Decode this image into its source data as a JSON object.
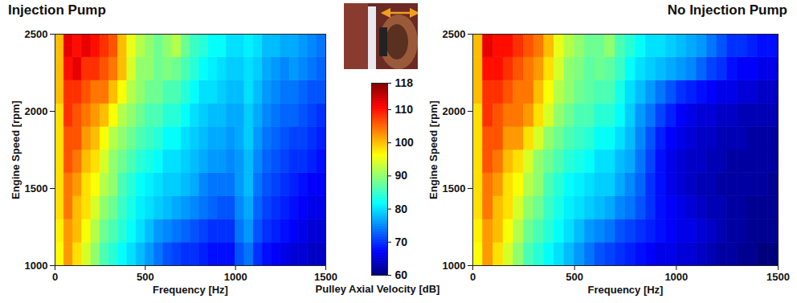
{
  "chart_data": [
    {
      "type": "heatmap",
      "title": "Injection Pump",
      "x_label": "Frequency [Hz]",
      "y_label": "Engine Speed [rpm]",
      "xlim": [
        0,
        1500
      ],
      "xticks": [
        0,
        500,
        1000,
        1500
      ],
      "ylim": [
        1000,
        2500
      ],
      "yticks": [
        1000,
        1500,
        2000,
        2500
      ],
      "x_bins": [
        0,
        50,
        100,
        150,
        200,
        250,
        300,
        350,
        400,
        450,
        500,
        550,
        600,
        650,
        700,
        750,
        800,
        850,
        900,
        950,
        1000,
        1050,
        1100,
        1150,
        1200,
        1250,
        1300,
        1350,
        1400,
        1450,
        1500
      ],
      "y_bins": [
        1000,
        1150,
        1300,
        1450,
        1600,
        1750,
        1900,
        2050,
        2200,
        2350,
        2500
      ],
      "cells": [
        [
          96,
          102,
          98,
          94,
          90,
          86,
          84,
          82,
          80,
          78,
          76,
          74,
          72,
          71,
          70,
          70,
          69,
          68,
          68,
          68,
          72,
          74,
          70,
          68,
          67,
          66,
          65,
          65,
          64,
          64
        ],
        [
          97,
          102,
          100,
          96,
          92,
          88,
          86,
          84,
          82,
          80,
          78,
          76,
          75,
          74,
          73,
          72,
          71,
          70,
          70,
          70,
          74,
          76,
          72,
          70,
          69,
          68,
          67,
          66,
          65,
          65
        ],
        [
          98,
          104,
          100,
          98,
          94,
          90,
          88,
          85,
          83,
          81,
          80,
          79,
          78,
          77,
          76,
          75,
          74,
          73,
          72,
          72,
          75,
          77,
          73,
          71,
          70,
          69,
          68,
          67,
          66,
          66
        ],
        [
          98,
          104,
          102,
          98,
          96,
          92,
          90,
          86,
          84,
          82,
          81,
          80,
          79,
          79,
          78,
          77,
          75,
          74,
          74,
          74,
          76,
          78,
          74,
          72,
          71,
          70,
          69,
          68,
          67,
          67
        ],
        [
          98,
          106,
          104,
          100,
          98,
          94,
          90,
          88,
          86,
          84,
          83,
          82,
          80,
          80,
          79,
          78,
          77,
          76,
          76,
          75,
          76,
          78,
          75,
          73,
          72,
          71,
          70,
          70,
          69,
          68
        ],
        [
          98,
          106,
          106,
          102,
          100,
          96,
          92,
          90,
          88,
          86,
          85,
          84,
          82,
          82,
          80,
          79,
          78,
          77,
          77,
          76,
          77,
          79,
          76,
          74,
          73,
          72,
          71,
          71,
          70,
          69
        ],
        [
          98,
          108,
          106,
          104,
          102,
          100,
          96,
          92,
          90,
          88,
          86,
          86,
          84,
          84,
          82,
          80,
          79,
          78,
          78,
          77,
          77,
          79,
          77,
          75,
          74,
          73,
          73,
          72,
          71,
          70
        ],
        [
          100,
          108,
          108,
          106,
          104,
          104,
          100,
          96,
          92,
          90,
          88,
          88,
          86,
          86,
          84,
          82,
          80,
          80,
          79,
          78,
          78,
          80,
          78,
          76,
          75,
          74,
          74,
          73,
          72,
          72
        ],
        [
          100,
          110,
          112,
          108,
          108,
          106,
          104,
          100,
          94,
          90,
          90,
          88,
          89,
          88,
          86,
          84,
          82,
          81,
          80,
          79,
          79,
          80,
          79,
          77,
          76,
          75,
          76,
          75,
          74,
          73
        ],
        [
          100,
          112,
          110,
          112,
          110,
          108,
          106,
          100,
          95,
          92,
          90,
          88,
          90,
          92,
          88,
          85,
          84,
          82,
          82,
          80,
          80,
          81,
          80,
          78,
          78,
          77,
          77,
          76,
          75,
          74
        ]
      ]
    },
    {
      "type": "heatmap",
      "title": "No Injection Pump",
      "x_label": "Frequency [Hz]",
      "y_label": "Engine Speed [rpm]",
      "xlim": [
        0,
        1500
      ],
      "xticks": [
        0,
        500,
        1000,
        1500
      ],
      "ylim": [
        1000,
        2500
      ],
      "yticks": [
        1000,
        1500,
        2000,
        2500
      ],
      "x_bins": [
        0,
        50,
        100,
        150,
        200,
        250,
        300,
        350,
        400,
        450,
        500,
        550,
        600,
        650,
        700,
        750,
        800,
        850,
        900,
        950,
        1000,
        1050,
        1100,
        1150,
        1200,
        1250,
        1300,
        1350,
        1400,
        1450,
        1500
      ],
      "y_bins": [
        1000,
        1150,
        1300,
        1450,
        1600,
        1750,
        1900,
        2050,
        2200,
        2350,
        2500
      ],
      "cells": [
        [
          96,
          102,
          98,
          94,
          90,
          86,
          84,
          82,
          80,
          78,
          76,
          74,
          72,
          71,
          70,
          69,
          68,
          67,
          66,
          66,
          65,
          65,
          64,
          63,
          62,
          62,
          61,
          61,
          60,
          60
        ],
        [
          97,
          102,
          100,
          96,
          92,
          88,
          86,
          84,
          82,
          80,
          78,
          76,
          75,
          74,
          72,
          71,
          70,
          69,
          68,
          67,
          66,
          66,
          65,
          64,
          63,
          62,
          62,
          61,
          61,
          61
        ],
        [
          98,
          104,
          100,
          98,
          94,
          90,
          88,
          85,
          83,
          81,
          80,
          79,
          78,
          77,
          75,
          74,
          72,
          70,
          68,
          67,
          66,
          65,
          64,
          63,
          63,
          62,
          62,
          61,
          61,
          61
        ],
        [
          98,
          104,
          102,
          98,
          96,
          92,
          90,
          86,
          84,
          82,
          81,
          80,
          79,
          79,
          77,
          75,
          73,
          70,
          68,
          66,
          65,
          64,
          63,
          63,
          62,
          62,
          62,
          62,
          62,
          61
        ],
        [
          98,
          106,
          104,
          100,
          98,
          94,
          90,
          88,
          86,
          84,
          83,
          82,
          80,
          80,
          78,
          77,
          74,
          71,
          68,
          66,
          65,
          64,
          64,
          63,
          63,
          62,
          62,
          62,
          62,
          62
        ],
        [
          98,
          106,
          106,
          102,
          102,
          98,
          94,
          90,
          88,
          86,
          85,
          84,
          82,
          82,
          80,
          78,
          75,
          72,
          69,
          67,
          66,
          65,
          64,
          64,
          63,
          63,
          63,
          62,
          62,
          62
        ],
        [
          98,
          108,
          106,
          104,
          104,
          102,
          98,
          94,
          90,
          88,
          86,
          86,
          84,
          84,
          82,
          79,
          76,
          74,
          71,
          69,
          67,
          66,
          65,
          65,
          64,
          64,
          63,
          63,
          63,
          63
        ],
        [
          100,
          108,
          108,
          106,
          104,
          104,
          100,
          96,
          92,
          90,
          88,
          87,
          86,
          86,
          83,
          80,
          78,
          76,
          74,
          72,
          70,
          69,
          68,
          67,
          66,
          66,
          65,
          65,
          64,
          64
        ],
        [
          100,
          110,
          110,
          108,
          106,
          104,
          102,
          98,
          94,
          90,
          89,
          87,
          88,
          87,
          85,
          82,
          80,
          79,
          78,
          77,
          76,
          75,
          73,
          71,
          70,
          68,
          67,
          67,
          66,
          66
        ],
        [
          100,
          112,
          110,
          110,
          108,
          106,
          104,
          100,
          95,
          92,
          90,
          88,
          88,
          90,
          86,
          84,
          82,
          80,
          80,
          79,
          78,
          77,
          76,
          74,
          72,
          70,
          70,
          69,
          68,
          68
        ]
      ]
    }
  ],
  "color_bar": {
    "label": "Pulley Axial Velocity [dB]",
    "range": [
      60,
      118
    ],
    "ticks": [
      60,
      70,
      80,
      90,
      100,
      110,
      118
    ]
  }
}
